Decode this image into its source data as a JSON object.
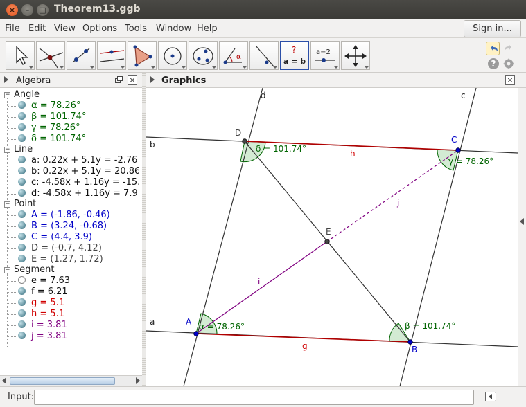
{
  "window": {
    "title": "Theorem13.ggb"
  },
  "menubar": {
    "items": [
      "File",
      "Edit",
      "View",
      "Options",
      "Tools",
      "Window",
      "Help"
    ],
    "signin": "Sign in..."
  },
  "toolbar": {
    "tools": [
      "move-tool",
      "point-tool",
      "line-tool",
      "perpendicular-line-tool",
      "polygon-tool",
      "circle-tool",
      "conic-tool",
      "angle-tool",
      "reflect-tool",
      "relation-tool",
      "slider-tool",
      "move-graphics-view-tool"
    ],
    "relation_q": "?",
    "relation_eq": "a = b",
    "slider_text": "a=2",
    "help_label": "?"
  },
  "algebra": {
    "title": "Algebra",
    "close": "×",
    "categories": {
      "angle": "Angle",
      "line": "Line",
      "point": "Point",
      "segment": "Segment"
    },
    "angles": [
      "α = 78.26°",
      "β = 101.74°",
      "γ = 78.26°",
      "δ = 101.74°"
    ],
    "lines": [
      "a: 0.22x + 5.1y = -2.76",
      "b: 0.22x + 5.1y = 20.86",
      "c: -4.58x + 1.16y = -15.",
      "d: -4.58x + 1.16y = 7.9"
    ],
    "points": [
      "A = (-1.86, -0.46)",
      "B = (3.24, -0.68)",
      "C = (4.4, 3.9)",
      "D = (-0.7, 4.12)",
      "E = (1.27, 1.72)"
    ],
    "segments": [
      "e = 7.63",
      "f = 6.21",
      "g = 5.1",
      "h = 5.1",
      "i = 3.81",
      "j = 3.81"
    ]
  },
  "graphics": {
    "title": "Graphics",
    "close": "×",
    "labels": {
      "a": "a",
      "b": "b",
      "c": "c",
      "d": "d",
      "A": "A",
      "B": "B",
      "C": "C",
      "D": "D",
      "E": "E",
      "g": "g",
      "h": "h",
      "i": "i",
      "j": "j",
      "alpha": "α = 78.26°",
      "beta": "β = 101.74°",
      "gamma": "γ = 78.26°",
      "delta": "δ = 101.74°"
    }
  },
  "input": {
    "label": "Input:",
    "value": ""
  },
  "colors": {
    "angle_green": "#006400",
    "line_red": "#b00000",
    "segment_purple": "#800080",
    "point_blue": "#0000c8",
    "line_dark": "#333333",
    "angle_fill": "#c8e6c8"
  }
}
